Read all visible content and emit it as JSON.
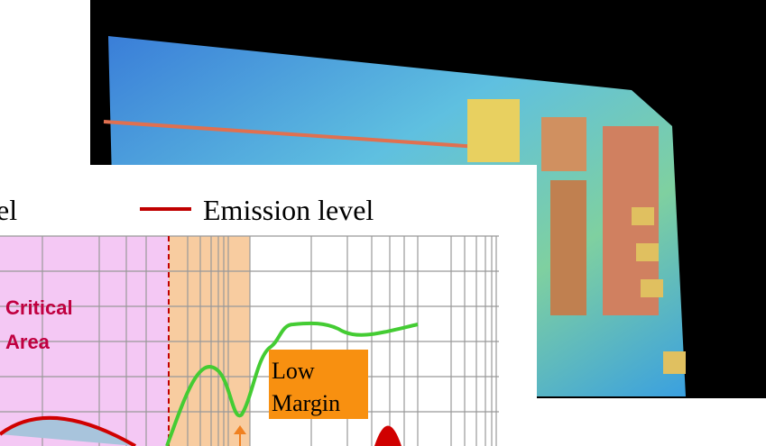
{
  "legend": {
    "partial": "el",
    "emission": "Emission level"
  },
  "labels": {
    "critical_area": [
      "Critical",
      "Area"
    ],
    "low_margin": [
      "Low",
      "Margin"
    ]
  }
}
